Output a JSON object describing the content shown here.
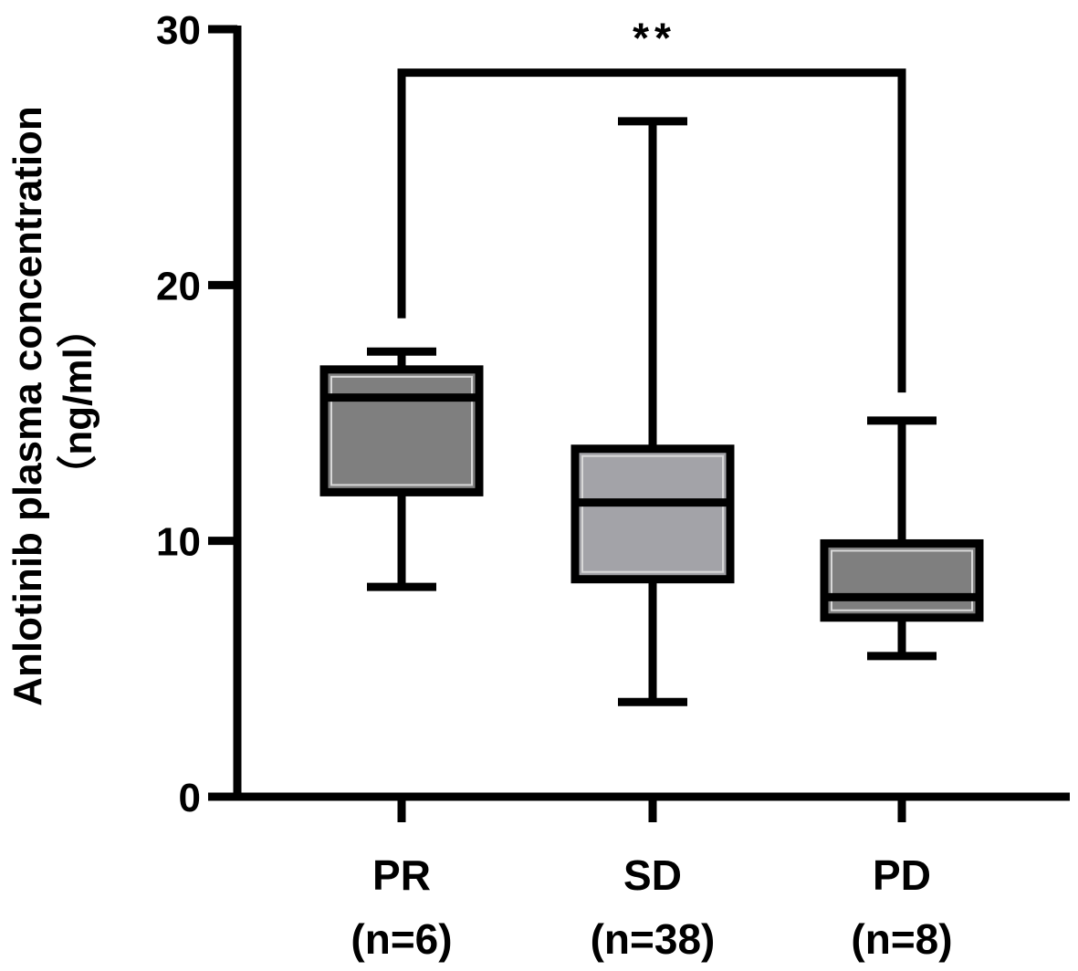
{
  "chart_data": {
    "type": "box",
    "ylabel": "Anlotinib plasma concentration",
    "ylabel_unit": "（ng/ml）",
    "ylim": [
      0,
      30
    ],
    "yticks": [
      "0",
      "10",
      "20",
      "30"
    ],
    "categories": [
      {
        "name": "PR",
        "n_label": "(n=6)"
      },
      {
        "name": "SD",
        "n_label": "(n=38)"
      },
      {
        "name": "PD",
        "n_label": "(n=8)"
      }
    ],
    "boxes": [
      {
        "category": "PR",
        "min": 8.2,
        "q1": 11.9,
        "median": 15.6,
        "q3": 16.7,
        "max": 17.4,
        "fill": "#7f7f7f"
      },
      {
        "category": "SD",
        "min": 3.7,
        "q1": 8.5,
        "median": 11.5,
        "q3": 13.6,
        "max": 26.4,
        "fill": "#a3a3a8"
      },
      {
        "category": "PD",
        "min": 5.5,
        "q1": 7.0,
        "median": 7.8,
        "q3": 9.9,
        "max": 14.7,
        "fill": "#7f7f7f"
      }
    ],
    "comparisons": [
      {
        "from": "PR",
        "to": "PD",
        "label": "**",
        "y": 28.3,
        "left_drop": 18.7,
        "right_drop": 15.8
      }
    ],
    "grid": false,
    "legend": "none"
  }
}
